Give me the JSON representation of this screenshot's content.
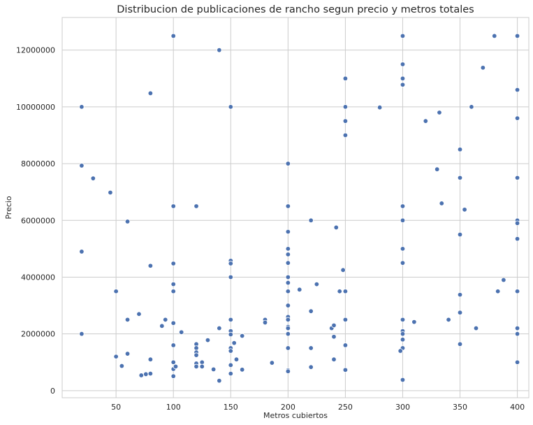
{
  "chart_data": {
    "type": "scatter",
    "title": "Distribucion de publicaciones de rancho segun precio y metros totales",
    "xlabel": "Metros cubiertos",
    "ylabel": "Precio",
    "xlim": [
      3,
      410
    ],
    "ylim": [
      -250000,
      13150000
    ],
    "xticks": [
      50,
      100,
      150,
      200,
      250,
      300,
      350,
      400
    ],
    "yticks": [
      0,
      2000000,
      4000000,
      6000000,
      8000000,
      10000000,
      12000000
    ],
    "ytick_labels": [
      "0",
      "2000000",
      "4000000",
      "6000000",
      "8000000",
      "10000000",
      "12000000"
    ],
    "grid": true,
    "marker_color": "#4c72b0",
    "series": [
      {
        "points": [
          [
            20,
            10000000
          ],
          [
            20,
            7930000
          ],
          [
            20,
            4900000
          ],
          [
            20,
            2000000
          ],
          [
            30,
            7480000
          ],
          [
            45,
            6980000
          ],
          [
            50,
            3500000
          ],
          [
            50,
            1200000
          ],
          [
            55,
            870000
          ],
          [
            60,
            5960000
          ],
          [
            60,
            2500000
          ],
          [
            60,
            1300000
          ],
          [
            70,
            2700000
          ],
          [
            72,
            540000
          ],
          [
            76,
            580000
          ],
          [
            80,
            10480000
          ],
          [
            80,
            4400000
          ],
          [
            80,
            1100000
          ],
          [
            80,
            600000
          ],
          [
            90,
            2280000
          ],
          [
            93,
            2500000
          ],
          [
            100,
            12500000
          ],
          [
            100,
            6500000
          ],
          [
            100,
            4480000
          ],
          [
            100,
            3750000
          ],
          [
            100,
            3500000
          ],
          [
            100,
            2380000
          ],
          [
            100,
            1600000
          ],
          [
            100,
            1000000
          ],
          [
            100,
            760000
          ],
          [
            100,
            510000
          ],
          [
            102,
            850000
          ],
          [
            107,
            2060000
          ],
          [
            120,
            6500000
          ],
          [
            120,
            1640000
          ],
          [
            120,
            1500000
          ],
          [
            120,
            1350000
          ],
          [
            120,
            1250000
          ],
          [
            120,
            960000
          ],
          [
            120,
            850000
          ],
          [
            125,
            1000000
          ],
          [
            125,
            850000
          ],
          [
            130,
            1780000
          ],
          [
            135,
            750000
          ],
          [
            140,
            12000000
          ],
          [
            140,
            2200000
          ],
          [
            140,
            350000
          ],
          [
            150,
            10000000
          ],
          [
            150,
            4580000
          ],
          [
            150,
            4480000
          ],
          [
            150,
            4000000
          ],
          [
            150,
            2500000
          ],
          [
            150,
            2100000
          ],
          [
            150,
            1980000
          ],
          [
            150,
            1500000
          ],
          [
            150,
            1400000
          ],
          [
            150,
            900000
          ],
          [
            150,
            600000
          ],
          [
            153,
            1680000
          ],
          [
            155,
            1100000
          ],
          [
            160,
            1930000
          ],
          [
            160,
            740000
          ],
          [
            180,
            2500000
          ],
          [
            180,
            2400000
          ],
          [
            186,
            980000
          ],
          [
            200,
            8000000
          ],
          [
            200,
            6500000
          ],
          [
            200,
            5600000
          ],
          [
            200,
            5000000
          ],
          [
            200,
            4800000
          ],
          [
            200,
            4500000
          ],
          [
            200,
            4000000
          ],
          [
            200,
            3800000
          ],
          [
            200,
            3500000
          ],
          [
            200,
            3000000
          ],
          [
            200,
            2600000
          ],
          [
            200,
            2500000
          ],
          [
            200,
            2250000
          ],
          [
            200,
            2200000
          ],
          [
            200,
            2000000
          ],
          [
            200,
            1500000
          ],
          [
            200,
            720000
          ],
          [
            200,
            680000
          ],
          [
            210,
            3560000
          ],
          [
            220,
            6000000
          ],
          [
            220,
            2800000
          ],
          [
            220,
            1500000
          ],
          [
            220,
            830000
          ],
          [
            225,
            3750000
          ],
          [
            238,
            2200000
          ],
          [
            240,
            2300000
          ],
          [
            240,
            1900000
          ],
          [
            240,
            1100000
          ],
          [
            242,
            5750000
          ],
          [
            245,
            3500000
          ],
          [
            248,
            4250000
          ],
          [
            250,
            11000000
          ],
          [
            250,
            10000000
          ],
          [
            250,
            9500000
          ],
          [
            250,
            9000000
          ],
          [
            250,
            3500000
          ],
          [
            250,
            2500000
          ],
          [
            250,
            1600000
          ],
          [
            250,
            730000
          ],
          [
            280,
            9980000
          ],
          [
            300,
            12500000
          ],
          [
            300,
            11500000
          ],
          [
            300,
            11000000
          ],
          [
            300,
            10780000
          ],
          [
            300,
            6500000
          ],
          [
            300,
            6000000
          ],
          [
            300,
            5000000
          ],
          [
            300,
            4500000
          ],
          [
            300,
            2500000
          ],
          [
            300,
            2100000
          ],
          [
            300,
            2000000
          ],
          [
            300,
            1800000
          ],
          [
            300,
            1500000
          ],
          [
            298,
            1400000
          ],
          [
            300,
            380000
          ],
          [
            310,
            2420000
          ],
          [
            320,
            9500000
          ],
          [
            330,
            7800000
          ],
          [
            332,
            9800000
          ],
          [
            334,
            6600000
          ],
          [
            340,
            2500000
          ],
          [
            350,
            8500000
          ],
          [
            350,
            7500000
          ],
          [
            350,
            5500000
          ],
          [
            350,
            3380000
          ],
          [
            350,
            2750000
          ],
          [
            350,
            1640000
          ],
          [
            354,
            6380000
          ],
          [
            360,
            10000000
          ],
          [
            364,
            2200000
          ],
          [
            370,
            11380000
          ],
          [
            380,
            12500000
          ],
          [
            383,
            3500000
          ],
          [
            388,
            3900000
          ],
          [
            400,
            12500000
          ],
          [
            400,
            10600000
          ],
          [
            400,
            9600000
          ],
          [
            400,
            7500000
          ],
          [
            400,
            6000000
          ],
          [
            400,
            5900000
          ],
          [
            400,
            5350000
          ],
          [
            400,
            3500000
          ],
          [
            400,
            2200000
          ],
          [
            400,
            2000000
          ],
          [
            400,
            1000000
          ]
        ]
      }
    ]
  }
}
